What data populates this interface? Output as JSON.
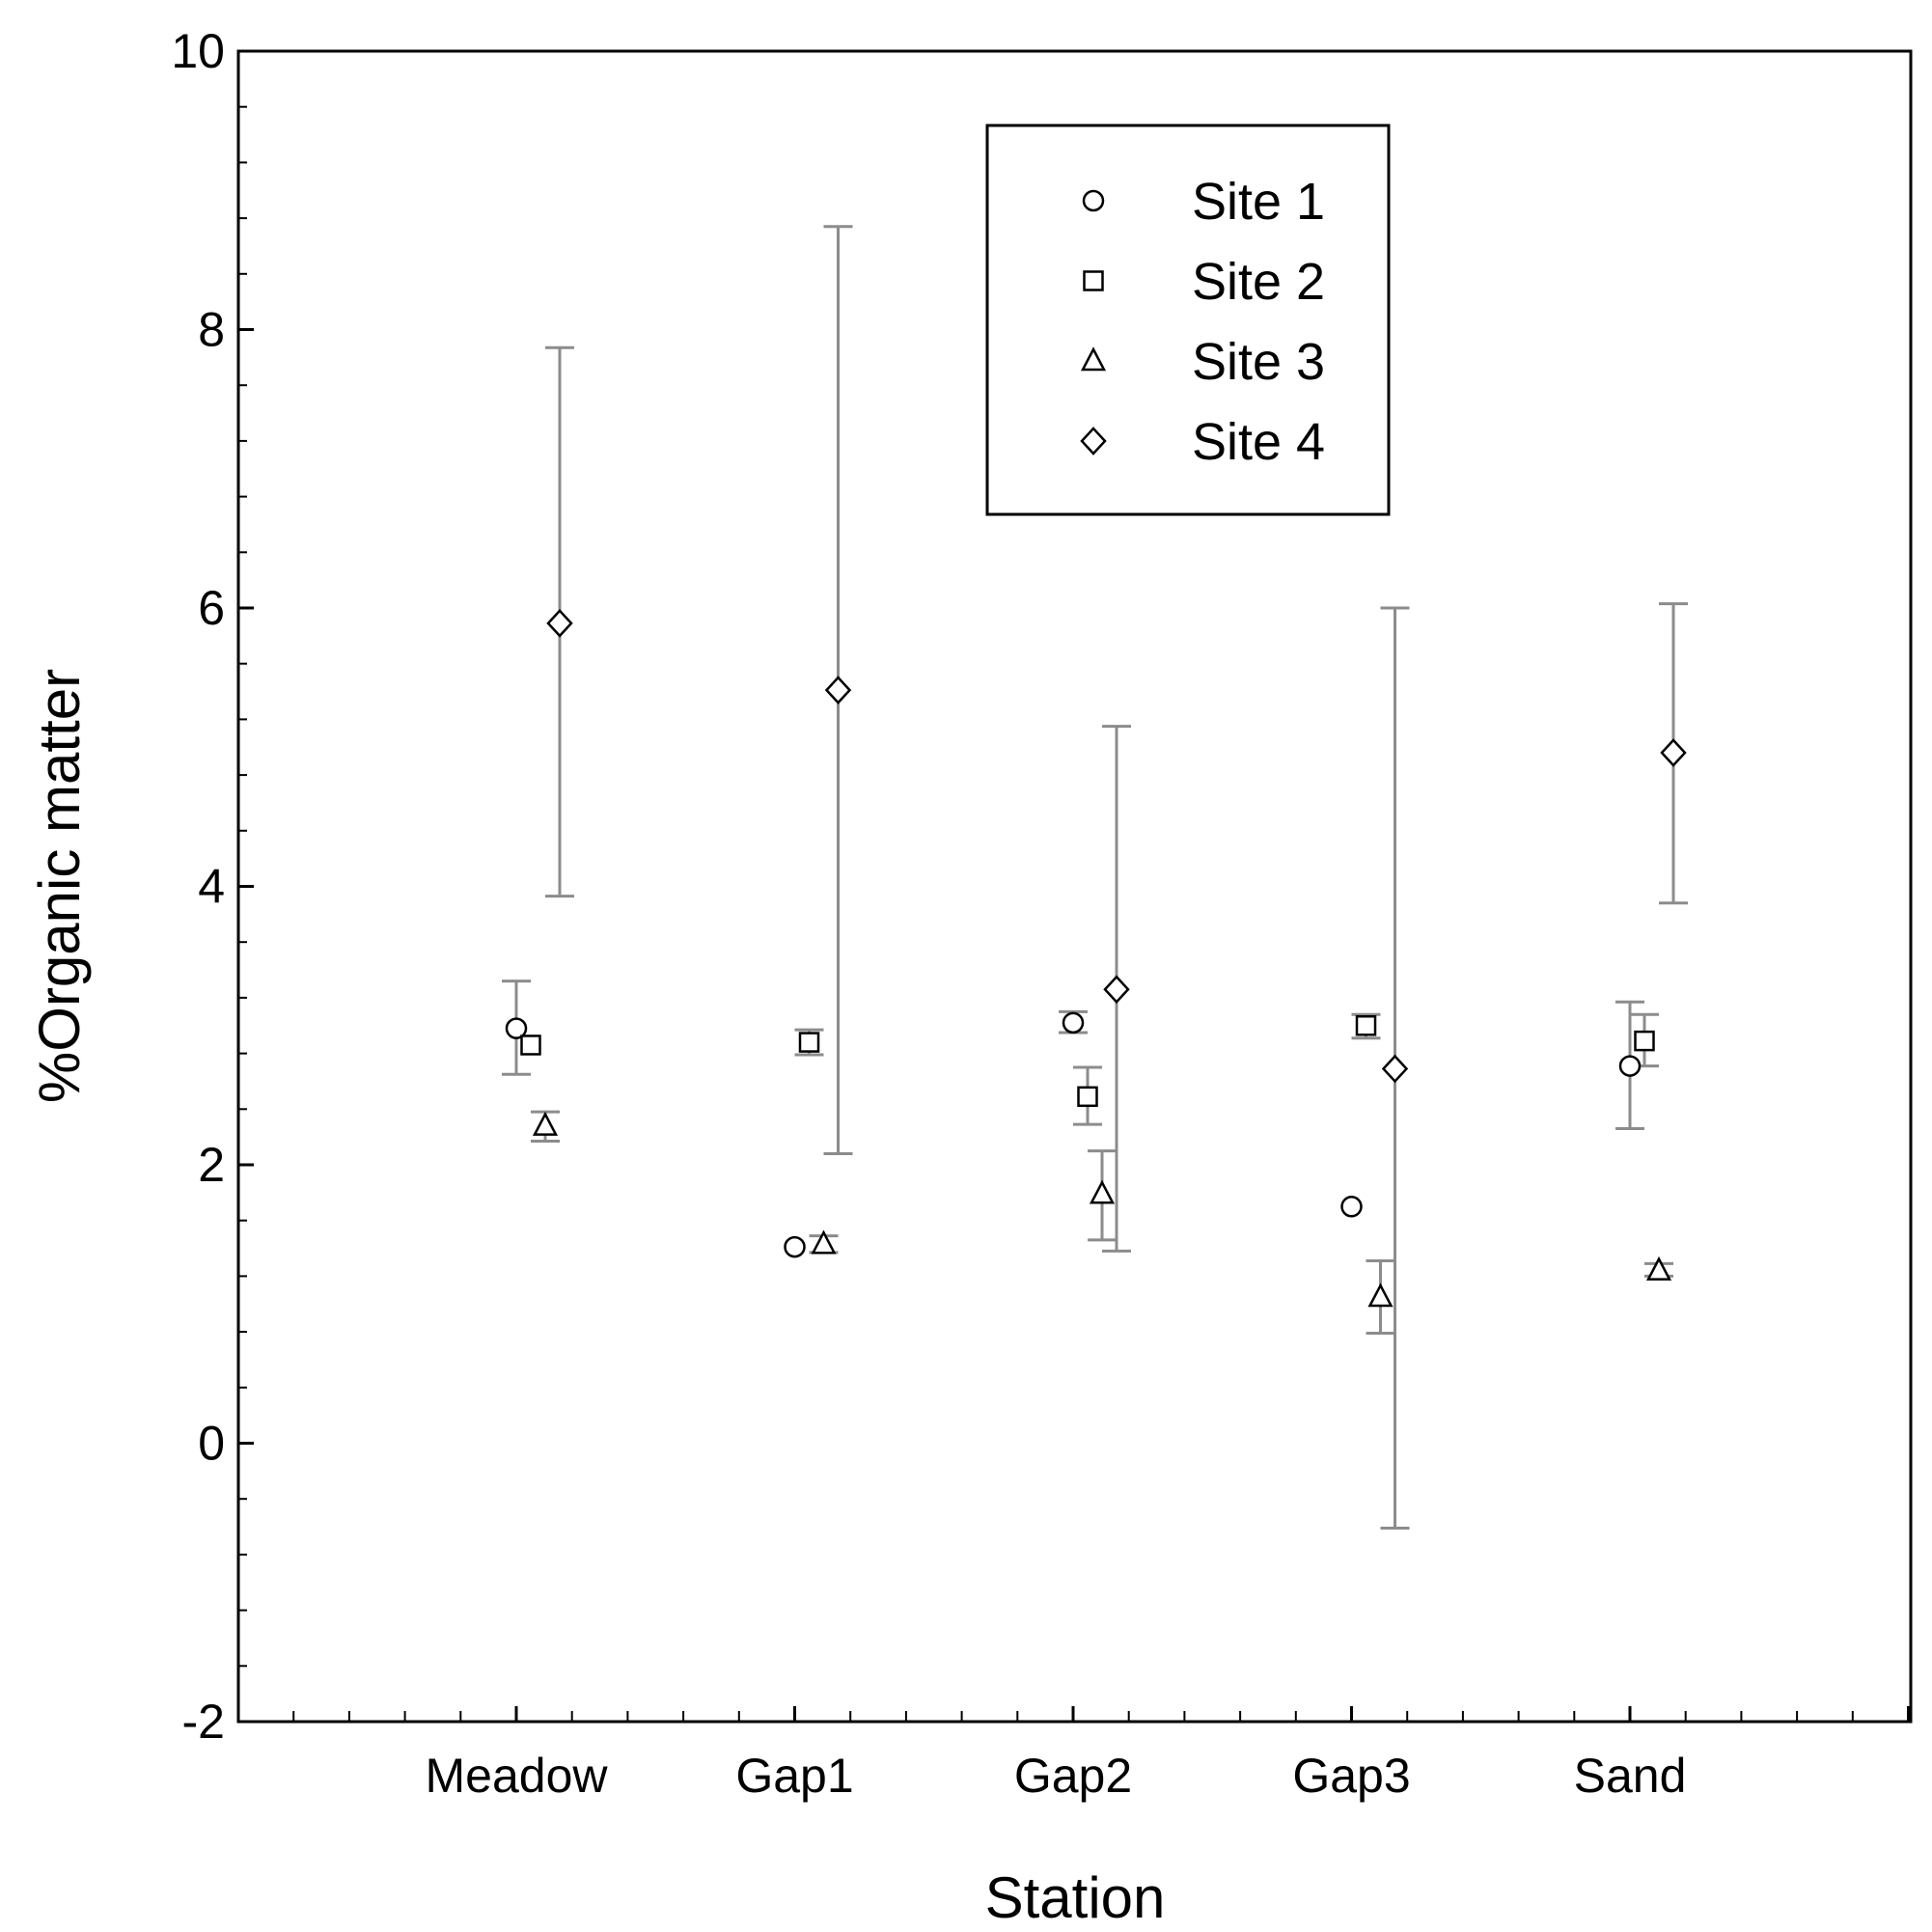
{
  "chart_data": {
    "type": "scatter",
    "title": "",
    "xlabel": "Station",
    "ylabel": "%Organic matter",
    "categories": [
      "Meadow",
      "Gap1",
      "Gap2",
      "Gap3",
      "Sand"
    ],
    "ylim": [
      -2,
      10
    ],
    "yticks": [
      -2,
      0,
      2,
      4,
      6,
      8,
      10
    ],
    "ytick_labels": [
      "-2",
      "0",
      "2",
      "4",
      "6",
      "8",
      "10"
    ],
    "grid": false,
    "legend_position": "top-right",
    "error_bar_color": "#8c8c8c",
    "series": [
      {
        "name": "Site 1",
        "marker": "circle",
        "values": [
          2.98,
          1.41,
          3.02,
          1.7,
          2.71
        ],
        "error_low": [
          2.65,
          1.41,
          2.95,
          1.7,
          2.26
        ],
        "error_high": [
          3.32,
          1.41,
          3.1,
          1.7,
          3.17
        ]
      },
      {
        "name": "Site 2",
        "marker": "square",
        "values": [
          2.86,
          2.88,
          2.49,
          3.0,
          2.89
        ],
        "error_low": [
          2.86,
          2.79,
          2.29,
          2.91,
          2.71
        ],
        "error_high": [
          2.86,
          2.97,
          2.7,
          3.08,
          3.08
        ]
      },
      {
        "name": "Site 3",
        "marker": "triangle",
        "values": [
          2.28,
          1.43,
          1.79,
          1.05,
          1.24
        ],
        "error_low": [
          2.17,
          1.37,
          1.46,
          0.79,
          1.2
        ],
        "error_high": [
          2.38,
          1.49,
          2.1,
          1.31,
          1.29
        ]
      },
      {
        "name": "Site 4",
        "marker": "diamond",
        "values": [
          5.89,
          5.41,
          3.26,
          2.69,
          4.96
        ],
        "error_low": [
          3.93,
          2.08,
          1.38,
          -0.61,
          3.88
        ],
        "error_high": [
          7.87,
          8.74,
          5.15,
          6.0,
          6.03
        ]
      }
    ]
  }
}
